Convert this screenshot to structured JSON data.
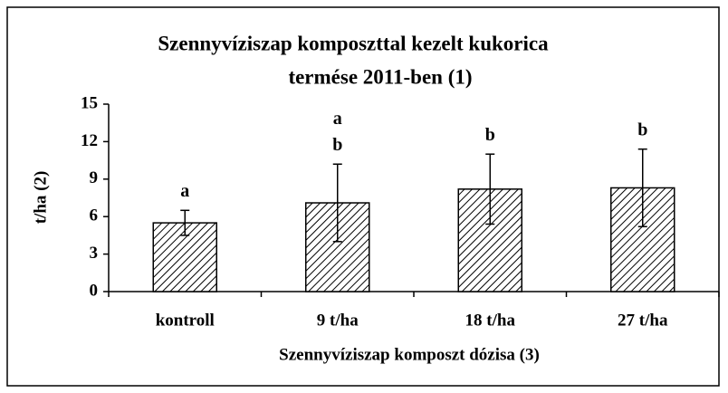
{
  "chart_data": {
    "type": "bar",
    "title": [
      "Szennyvíziszap komposzttal kezelt kukorica",
      "termése 2011-ben (1)"
    ],
    "xlabel": "Szennyvíziszap komposzt dózisa (3)",
    "ylabel": "t/ha (2)",
    "categories": [
      "kontroll",
      "9 t/ha",
      "18 t/ha",
      "27 t/ha"
    ],
    "values": [
      5.5,
      7.1,
      8.2,
      8.3
    ],
    "errors": [
      1.0,
      3.1,
      2.8,
      3.1
    ],
    "annotations": [
      [
        "a"
      ],
      [
        "a",
        "b"
      ],
      [
        "b"
      ],
      [
        "b"
      ]
    ],
    "color": "#000000",
    "ylim": [
      0,
      15
    ],
    "yticks": [
      0,
      3,
      6,
      9,
      12,
      15
    ]
  }
}
